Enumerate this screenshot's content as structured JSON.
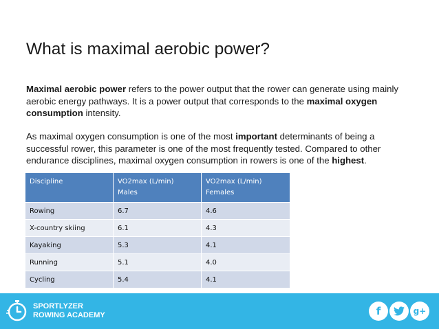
{
  "slide": {
    "title": "What is maximal aerobic power?",
    "p1": {
      "bold1": "Maximal aerobic power",
      "text1": " refers to the power output that the rower can generate using mainly aerobic energy pathways. It is a power output that corresponds to the ",
      "bold2": "maximal oxygen consumption",
      "text2": " intensity."
    },
    "p2": {
      "text1": "As maximal oxygen consumption is one of the most ",
      "bold1": "important",
      "text2": " determinants of being a successful rower, this parameter is one of the most frequently tested. Compared to other endurance disciplines, maximal oxygen consumption in rowers is one of the ",
      "bold2": "highest",
      "text3": "."
    }
  },
  "table": {
    "headers": [
      {
        "line1": "Discipline",
        "line2": ""
      },
      {
        "line1": "VO2max  (L/min)",
        "line2": "Males"
      },
      {
        "line1": "VO2max (L/min)",
        "line2": "Females"
      }
    ],
    "rows": [
      [
        "Rowing",
        "6.7",
        "4.6"
      ],
      [
        "X-country skiing",
        "6.1",
        "4.3"
      ],
      [
        "Kayaking",
        "5.3",
        "4.1"
      ],
      [
        "Running",
        "5.1",
        "4.0"
      ],
      [
        "Cycling",
        "5.4",
        "4.1"
      ]
    ]
  },
  "footer": {
    "brand_line1": "SPORTLYZER",
    "brand_line2": "ROWING ACADEMY",
    "social": {
      "facebook": "f",
      "twitter": "t",
      "googleplus": "g+"
    },
    "colors": {
      "bar": "#33b5e5",
      "header": "#4f81bd"
    }
  }
}
